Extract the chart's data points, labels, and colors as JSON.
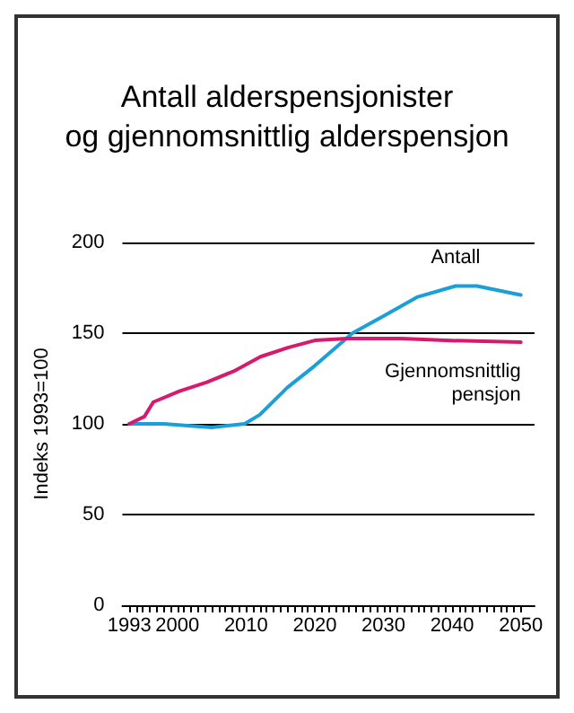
{
  "chart_data": {
    "type": "line",
    "title": "Antall alderspensjonister\nog gjennomsnittlig alderspensjon",
    "ylabel": "Indeks 1993=100",
    "xlim": [
      1992,
      2052
    ],
    "ylim": [
      0,
      200
    ],
    "yticks": [
      0,
      50,
      100,
      150,
      200
    ],
    "xticks": [
      1993,
      {
        "value": 1994,
        "label": null
      },
      {
        "value": 1995,
        "label": null
      },
      {
        "value": 1996,
        "label": null
      },
      {
        "value": 1997,
        "label": null
      },
      {
        "value": 1998,
        "label": null
      },
      {
        "value": 1999,
        "label": null
      },
      2000,
      {
        "value": 2001,
        "label": null
      },
      {
        "value": 2002,
        "label": null
      },
      {
        "value": 2003,
        "label": null
      },
      {
        "value": 2004,
        "label": null
      },
      {
        "value": 2005,
        "label": null
      },
      {
        "value": 2006,
        "label": null
      },
      {
        "value": 2007,
        "label": null
      },
      {
        "value": 2008,
        "label": null
      },
      {
        "value": 2009,
        "label": null
      },
      2010,
      {
        "value": 2011,
        "label": null
      },
      {
        "value": 2012,
        "label": null
      },
      {
        "value": 2013,
        "label": null
      },
      {
        "value": 2014,
        "label": null
      },
      {
        "value": 2015,
        "label": null
      },
      {
        "value": 2016,
        "label": null
      },
      {
        "value": 2017,
        "label": null
      },
      {
        "value": 2018,
        "label": null
      },
      {
        "value": 2019,
        "label": null
      },
      2020,
      {
        "value": 2021,
        "label": null
      },
      {
        "value": 2022,
        "label": null
      },
      {
        "value": 2023,
        "label": null
      },
      {
        "value": 2024,
        "label": null
      },
      {
        "value": 2025,
        "label": null
      },
      {
        "value": 2026,
        "label": null
      },
      {
        "value": 2027,
        "label": null
      },
      {
        "value": 2028,
        "label": null
      },
      {
        "value": 2029,
        "label": null
      },
      2030,
      {
        "value": 2031,
        "label": null
      },
      {
        "value": 2032,
        "label": null
      },
      {
        "value": 2033,
        "label": null
      },
      {
        "value": 2034,
        "label": null
      },
      {
        "value": 2035,
        "label": null
      },
      {
        "value": 2036,
        "label": null
      },
      {
        "value": 2037,
        "label": null
      },
      {
        "value": 2038,
        "label": null
      },
      {
        "value": 2039,
        "label": null
      },
      2040,
      {
        "value": 2041,
        "label": null
      },
      {
        "value": 2042,
        "label": null
      },
      {
        "value": 2043,
        "label": null
      },
      {
        "value": 2044,
        "label": null
      },
      {
        "value": 2045,
        "label": null
      },
      {
        "value": 2046,
        "label": null
      },
      {
        "value": 2047,
        "label": null
      },
      {
        "value": 2048,
        "label": null
      },
      {
        "value": 2049,
        "label": null
      },
      2050
    ],
    "grid": "y",
    "legend": false,
    "marker": "none",
    "line_style": "solid",
    "series": [
      {
        "name": "Antall",
        "color": "#1a9fd9",
        "x": [
          1993,
          1998,
          2005,
          2009.8,
          2012,
          2016,
          2020,
          2025.5,
          2030.3,
          2035,
          2040.5,
          2043.6,
          2050
        ],
        "values": [
          100,
          100,
          98,
          100,
          105,
          120,
          132,
          150,
          160,
          170,
          176,
          176,
          171
        ]
      },
      {
        "name": "Gjennomsnittlig\npensjon",
        "color": "#d61a6e",
        "x": [
          1993,
          1995.2,
          1996.5,
          2000.3,
          2004.3,
          2008.2,
          2012.1,
          2016.1,
          2020,
          2024.7,
          2032.6,
          2039,
          2050
        ],
        "values": [
          100,
          104,
          112,
          118,
          123,
          129,
          137,
          142,
          146,
          147,
          147,
          146,
          145
        ]
      }
    ]
  }
}
